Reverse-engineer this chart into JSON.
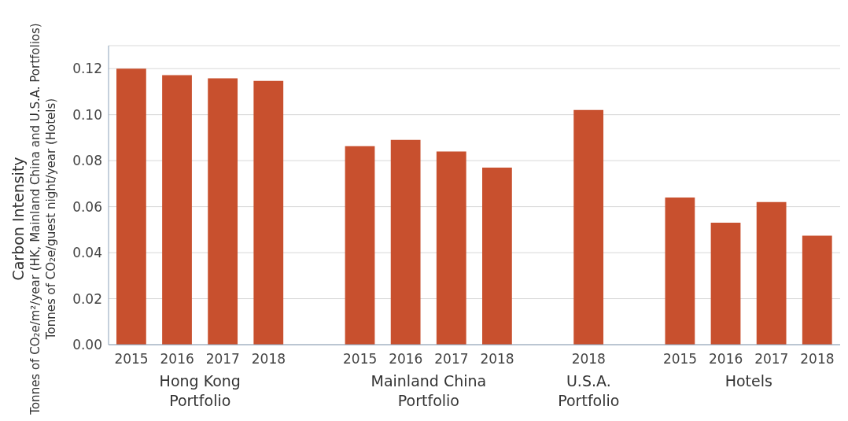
{
  "chart_data": {
    "type": "bar",
    "ylabel": "Carbon Intensity\nTonnes of CO₂e/m²/year (HK, Mainland China and U.S.A. Portfolios)\nTonnes of CO₂e/guest night/year (Hotels)",
    "categories": [
      "2015",
      "2016",
      "2017",
      "2018",
      null,
      "2015",
      "2016",
      "2017",
      "2018",
      null,
      "2018",
      null,
      "2015",
      "2016",
      "2017",
      "2018"
    ],
    "values": [
      0.12,
      0.1172,
      0.1158,
      0.1147,
      null,
      0.0863,
      0.089,
      0.084,
      0.077,
      null,
      0.102,
      null,
      0.064,
      0.053,
      0.062,
      0.0474
    ],
    "color": "#c8502e",
    "annotations": [
      "Hong Kong Portfolio",
      "Mainland China Portfolio",
      "U.S.A. Portfolio",
      "Hotels"
    ],
    "ylim": [
      0,
      0.13
    ],
    "yticks": [
      {
        "value": 0,
        "label": "0.00"
      },
      {
        "value": 0.02,
        "label": "0.02"
      },
      {
        "value": 0.04,
        "label": "0.04"
      },
      {
        "value": 0.06,
        "label": "0.06"
      },
      {
        "value": 0.08,
        "label": "0.08"
      },
      {
        "value": 0.1,
        "label": "0.10"
      },
      {
        "value": 0.12,
        "label": "0.12"
      }
    ],
    "grid": "y"
  }
}
